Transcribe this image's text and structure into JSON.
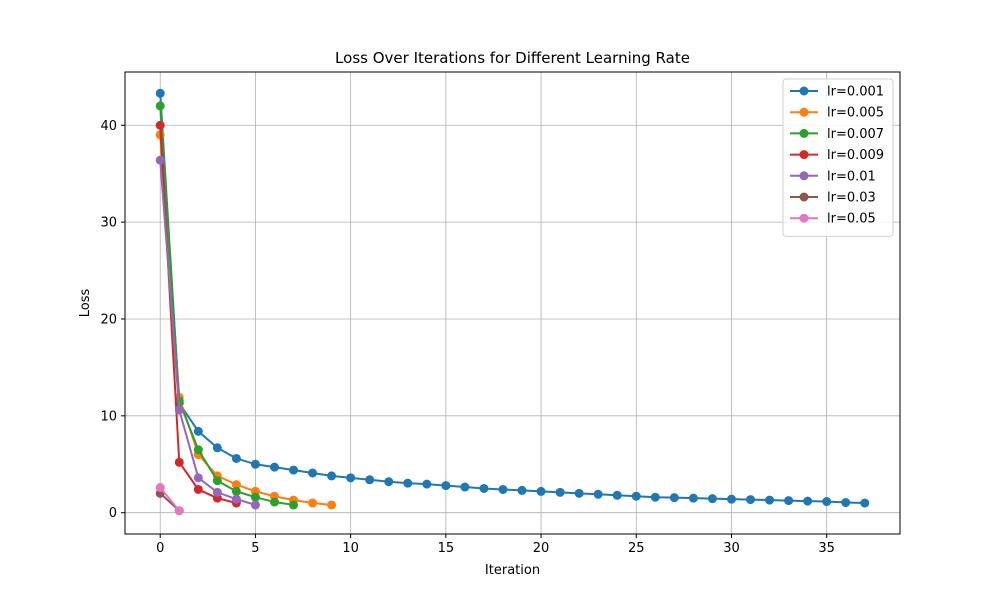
{
  "chart_data": {
    "type": "line",
    "title": "Loss Over Iterations for Different Learning Rate",
    "xlabel": "Iteration",
    "ylabel": "Loss",
    "xlim": [
      -1.85,
      38.85
    ],
    "ylim": [
      -2.2,
      45.5
    ],
    "xticks": [
      0,
      5,
      10,
      15,
      20,
      25,
      30,
      35
    ],
    "yticks": [
      0,
      10,
      20,
      30,
      40
    ],
    "grid": true,
    "legend_position": "top-right",
    "series": [
      {
        "name": "lr=0.001",
        "color": "#1f77b4",
        "y": [
          43.3,
          11.3,
          8.4,
          6.7,
          5.6,
          5.0,
          4.7,
          4.4,
          4.1,
          3.8,
          3.6,
          3.4,
          3.2,
          3.05,
          2.95,
          2.8,
          2.65,
          2.5,
          2.4,
          2.3,
          2.2,
          2.1,
          2.0,
          1.9,
          1.8,
          1.7,
          1.6,
          1.55,
          1.5,
          1.45,
          1.4,
          1.35,
          1.3,
          1.25,
          1.2,
          1.15,
          1.05,
          1.0
        ]
      },
      {
        "name": "lr=0.005",
        "color": "#ff7f0e",
        "y": [
          39.0,
          11.9,
          6.0,
          3.8,
          2.9,
          2.2,
          1.7,
          1.3,
          1.0,
          0.8
        ]
      },
      {
        "name": "lr=0.007",
        "color": "#2ca02c",
        "y": [
          42.0,
          11.5,
          6.5,
          3.3,
          2.2,
          1.6,
          1.1,
          0.8
        ]
      },
      {
        "name": "lr=0.009",
        "color": "#d62728",
        "y": [
          40.0,
          5.2,
          2.4,
          1.5,
          1.0
        ]
      },
      {
        "name": "lr=0.01",
        "color": "#9467bd",
        "y": [
          36.4,
          10.6,
          3.6,
          2.1,
          1.4,
          0.8
        ]
      },
      {
        "name": "lr=0.03",
        "color": "#8c564b",
        "y": [
          2.0,
          0.2
        ]
      },
      {
        "name": "lr=0.05",
        "color": "#e377c2",
        "y": [
          2.6,
          0.2
        ]
      }
    ]
  }
}
